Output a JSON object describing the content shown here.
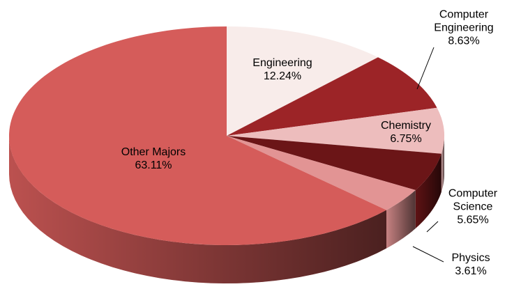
{
  "chart_data": {
    "type": "pie",
    "categories": [
      "Engineering",
      "Computer Engineering",
      "Chemistry",
      "Computer Science",
      "Physics",
      "Other Majors"
    ],
    "values": [
      12.24,
      8.63,
      6.75,
      5.65,
      3.61,
      63.11
    ],
    "value_labels": [
      "12.24%",
      "8.63%",
      "6.75%",
      "5.65%",
      "3.61%",
      "63.11%"
    ],
    "colors": [
      "#f8ecea",
      "#9c2427",
      "#edbdbd",
      "#6b1517",
      "#e29494",
      "#d55c5a"
    ]
  }
}
